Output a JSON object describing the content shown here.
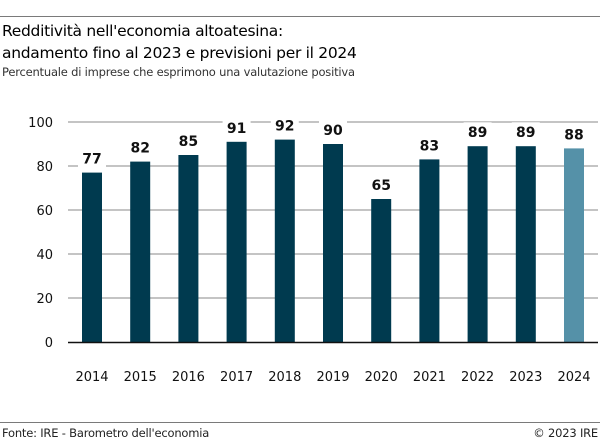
{
  "chart_data": {
    "type": "bar",
    "title": "Redditività nell'economia altoatesina: andamento fino al 2023 e previsioni per il 2024",
    "title_lines": [
      "Redditività nell'economia altoatesina:",
      "andamento fino al 2023 e previsioni per il 2024"
    ],
    "subtitle": "Percentuale di imprese che esprimono una valutazione positiva",
    "xlabel": "",
    "ylabel": "",
    "categories": [
      "2014",
      "2015",
      "2016",
      "2017",
      "2018",
      "2019",
      "2020",
      "2021",
      "2022",
      "2023",
      "2024"
    ],
    "values": [
      77,
      82,
      85,
      91,
      92,
      90,
      65,
      83,
      89,
      89,
      88
    ],
    "forecast": [
      false,
      false,
      false,
      false,
      false,
      false,
      false,
      false,
      false,
      false,
      true
    ],
    "ylim": [
      0,
      100
    ],
    "yticks": [
      0,
      20,
      40,
      60,
      80,
      100
    ],
    "grid": true,
    "legend": "none",
    "colors": {
      "actual": "#003a4f",
      "forecast": "#5591a8",
      "grid": "#8a8a8a"
    },
    "source": "Fonte: IRE - Barometro dell'economia",
    "copyright": "© 2023 IRE"
  }
}
